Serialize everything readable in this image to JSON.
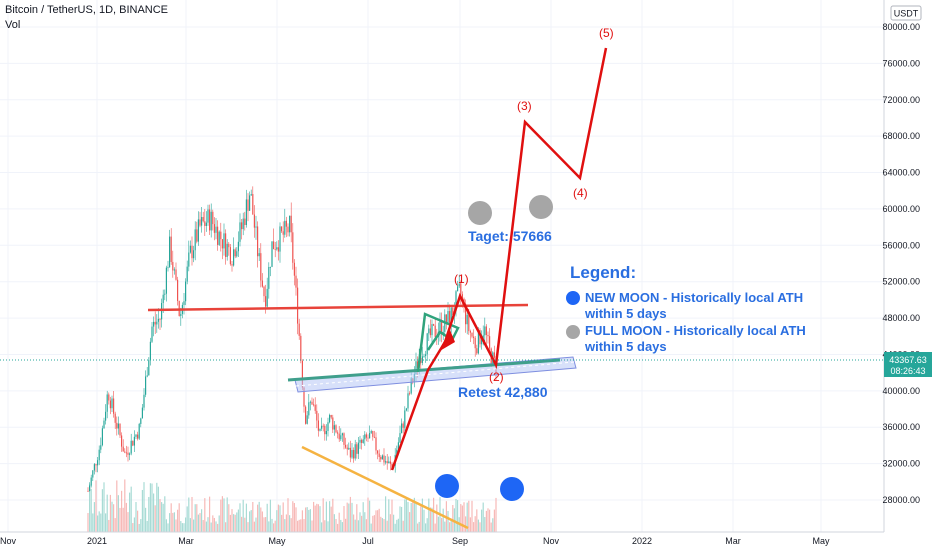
{
  "header": {
    "title": "Bitcoin / TetherUS, 1D, BINANCE",
    "volume_label": "Vol"
  },
  "price_scale": {
    "currency": "USDT",
    "last_price": "43367.63",
    "countdown": "08:26:43"
  },
  "chart_data": {
    "type": "candlestick",
    "symbol": "BTCUSDT",
    "ylim": [
      24000,
      82000
    ],
    "y_ticks": [
      "80000.00",
      "76000.00",
      "72000.00",
      "68000.00",
      "64000.00",
      "60000.00",
      "56000.00",
      "52000.00",
      "48000.00",
      "44000.00",
      "40000.00",
      "36000.00",
      "32000.00",
      "28000.00"
    ],
    "x_ticks": [
      "Nov",
      "2021",
      "Mar",
      "May",
      "Jul",
      "Sep",
      "Nov",
      "2022",
      "Mar",
      "May"
    ],
    "last_price": 43367.63,
    "annotations": {
      "target": "Taget: 57666",
      "retest": "Retest 42,880",
      "waves": [
        "(1)",
        "(2)",
        "(3)",
        "(4)",
        "(5)"
      ],
      "legend_title": "Legend:",
      "legend_new_moon": "NEW MOON - Historically local ATH within 5 days",
      "legend_new_moon_line1": "NEW MOON - Historically local ATH",
      "legend_new_moon_line2": "within 5 days",
      "legend_full_moon_line1": "FULL  MOON - Historically local ATH",
      "legend_full_moon_line2": "within 5 days"
    },
    "colors": {
      "up": "#26a69a",
      "down": "#ef5350",
      "wave_line": "#e01010",
      "resistance_line": "#e8433a",
      "support_line": "#3f9f8c",
      "wedge_line": "#f5b342",
      "annotation_text": "#2a6ee0",
      "new_moon": "#1e66f5",
      "full_moon": "#a6a6a6"
    }
  }
}
